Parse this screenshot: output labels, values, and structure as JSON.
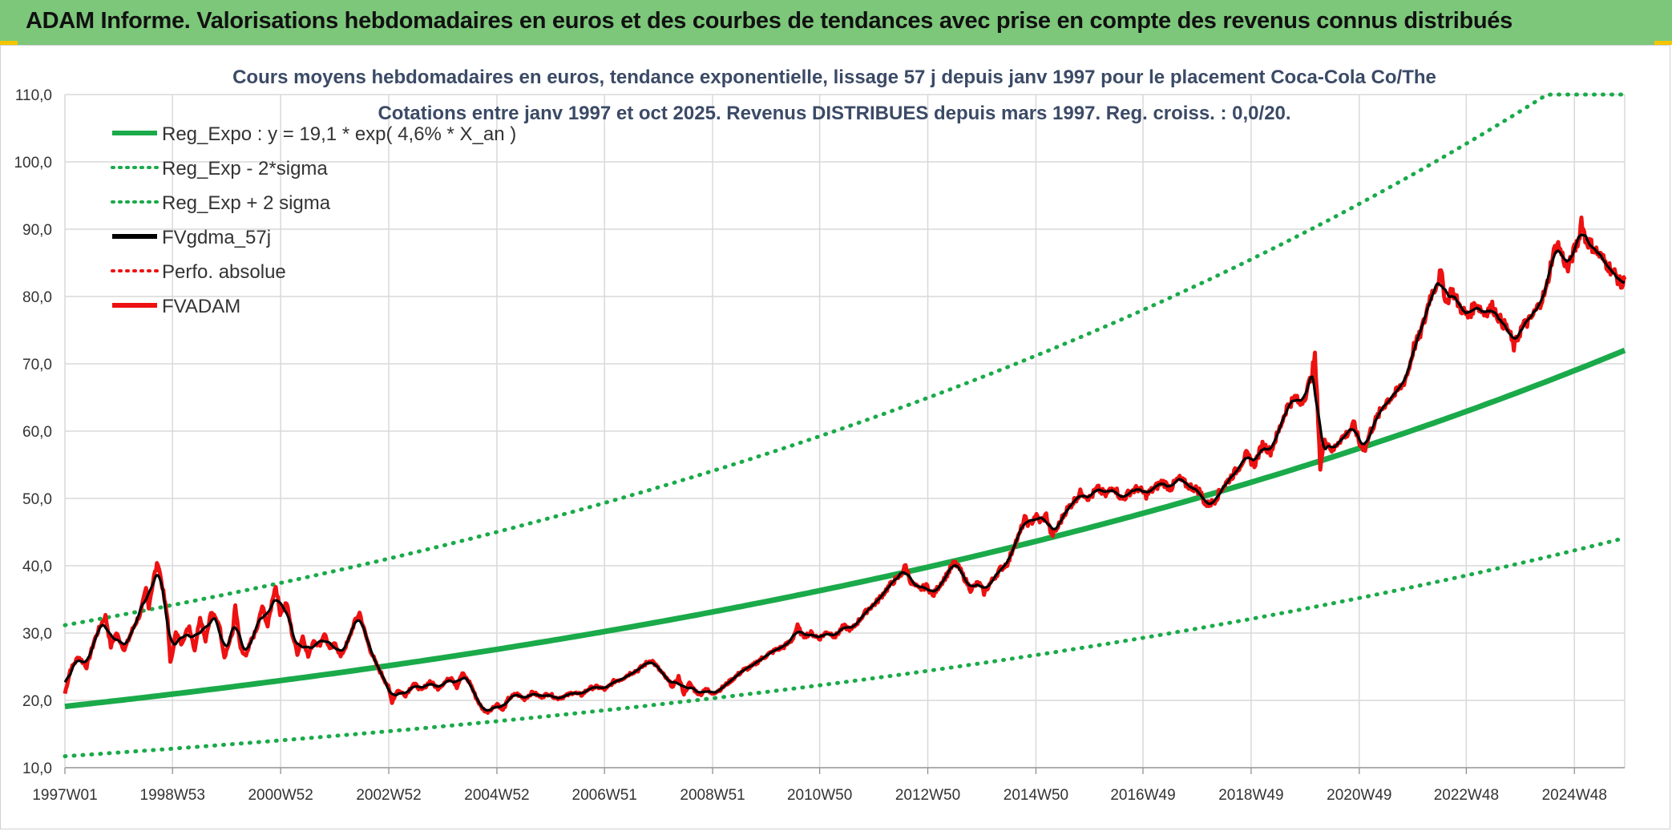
{
  "header": {
    "title": "ADAM Informe. Valorisations hebdomadaires en euros et des courbes de tendances avec prise en compte des revenus connus distribués"
  },
  "colors": {
    "header_bg": "#7cc77a",
    "reg_green": "#1aaa4a",
    "black": "#000000",
    "red": "#ee1111",
    "grid": "#d9d9d9"
  },
  "chart_data": {
    "type": "line",
    "title": "Cours moyens hebdomadaires en euros, tendance exponentielle, lissage 57 j depuis janv 1997 pour le placement Coca-Cola Co/The",
    "subtitle": "Cotations entre janv 1997 et oct 2025. Revenus DISTRIBUES depuis mars 1997. Reg. croiss. : 0,0/20.",
    "xlabel": "",
    "ylabel": "",
    "ylim": [
      10,
      110
    ],
    "y_ticks": [
      "10,0",
      "20,0",
      "30,0",
      "40,0",
      "50,0",
      "60,0",
      "70,0",
      "80,0",
      "90,0",
      "100,0",
      "110,0"
    ],
    "x_range": [
      1997.0,
      2025.85
    ],
    "x_ticks": [
      {
        "label": "1997W01",
        "x": 1997.0
      },
      {
        "label": "1998W53",
        "x": 1998.99
      },
      {
        "label": "2000W52",
        "x": 2000.99
      },
      {
        "label": "2002W52",
        "x": 2002.99
      },
      {
        "label": "2004W52",
        "x": 2004.99
      },
      {
        "label": "2006W51",
        "x": 2006.98
      },
      {
        "label": "2008W51",
        "x": 2008.98
      },
      {
        "label": "2010W50",
        "x": 2010.96
      },
      {
        "label": "2012W50",
        "x": 2012.96
      },
      {
        "label": "2014W50",
        "x": 2014.96
      },
      {
        "label": "2016W49",
        "x": 2016.94
      },
      {
        "label": "2018W49",
        "x": 2018.94
      },
      {
        "label": "2020W49",
        "x": 2020.94
      },
      {
        "label": "2022W48",
        "x": 2022.92
      },
      {
        "label": "2024W48",
        "x": 2024.92
      }
    ],
    "grid": true,
    "legend_position": "top-left",
    "regression": {
      "a": 19.1,
      "rate": 0.046,
      "sigma_factor": 0.632
    },
    "series": [
      {
        "name": "Reg_Expo : y = 19,1 * exp( 4,6% *  X_an )",
        "style": "solid",
        "color": "#1aaa4a",
        "kind": "reg"
      },
      {
        "name": "Reg_Exp - 2*sigma",
        "style": "dotted",
        "color": "#1aaa4a",
        "kind": "reg_low"
      },
      {
        "name": "Reg_Exp + 2 sigma",
        "style": "dotted",
        "color": "#1aaa4a",
        "kind": "reg_high"
      },
      {
        "name": "FVgdma_57j",
        "style": "solid",
        "color": "#000000",
        "kind": "smooth"
      },
      {
        "name": "Perfo. absolue",
        "style": "dotted",
        "color": "#ee1111",
        "kind": "none"
      },
      {
        "name": "FVADAM",
        "style": "solid",
        "color": "#ee1111",
        "kind": "price"
      }
    ],
    "price_points": [
      [
        1997.0,
        21.0
      ],
      [
        1997.1,
        24.5
      ],
      [
        1997.25,
        26.5
      ],
      [
        1997.4,
        25.0
      ],
      [
        1997.55,
        29.0
      ],
      [
        1997.65,
        31.0
      ],
      [
        1997.75,
        32.5
      ],
      [
        1997.85,
        28.0
      ],
      [
        1997.95,
        30.0
      ],
      [
        1998.1,
        27.5
      ],
      [
        1998.25,
        30.5
      ],
      [
        1998.4,
        33.0
      ],
      [
        1998.5,
        36.5
      ],
      [
        1998.55,
        34.0
      ],
      [
        1998.65,
        38.5
      ],
      [
        1998.72,
        40.5
      ],
      [
        1998.8,
        37.0
      ],
      [
        1998.9,
        32.0
      ],
      [
        1998.95,
        25.5
      ],
      [
        1999.05,
        30.0
      ],
      [
        1999.15,
        28.5
      ],
      [
        1999.3,
        31.0
      ],
      [
        1999.4,
        27.5
      ],
      [
        1999.5,
        32.5
      ],
      [
        1999.6,
        29.0
      ],
      [
        1999.7,
        33.0
      ],
      [
        1999.85,
        31.5
      ],
      [
        1999.95,
        26.5
      ],
      [
        2000.1,
        30.0
      ],
      [
        2000.15,
        34.0
      ],
      [
        2000.25,
        27.5
      ],
      [
        2000.35,
        26.5
      ],
      [
        2000.45,
        29.0
      ],
      [
        2000.55,
        30.5
      ],
      [
        2000.65,
        34.0
      ],
      [
        2000.75,
        31.0
      ],
      [
        2000.85,
        35.5
      ],
      [
        2000.9,
        37.0
      ],
      [
        2000.98,
        33.0
      ],
      [
        2001.1,
        34.5
      ],
      [
        2001.2,
        30.0
      ],
      [
        2001.3,
        27.0
      ],
      [
        2001.4,
        29.5
      ],
      [
        2001.5,
        26.5
      ],
      [
        2001.6,
        29.0
      ],
      [
        2001.7,
        28.0
      ],
      [
        2001.8,
        30.0
      ],
      [
        2001.9,
        27.5
      ],
      [
        2002.0,
        28.5
      ],
      [
        2002.1,
        26.5
      ],
      [
        2002.25,
        29.0
      ],
      [
        2002.35,
        31.5
      ],
      [
        2002.45,
        33.0
      ],
      [
        2002.55,
        30.0
      ],
      [
        2002.65,
        27.5
      ],
      [
        2002.75,
        25.5
      ],
      [
        2002.85,
        24.0
      ],
      [
        2002.98,
        22.0
      ],
      [
        2003.05,
        19.8
      ],
      [
        2003.15,
        21.5
      ],
      [
        2003.3,
        20.8
      ],
      [
        2003.45,
        22.5
      ],
      [
        2003.6,
        21.5
      ],
      [
        2003.75,
        22.8
      ],
      [
        2003.9,
        21.8
      ],
      [
        2004.0,
        22.5
      ],
      [
        2004.15,
        23.5
      ],
      [
        2004.25,
        22.0
      ],
      [
        2004.35,
        24.0
      ],
      [
        2004.5,
        22.5
      ],
      [
        2004.6,
        20.5
      ],
      [
        2004.7,
        19.0
      ],
      [
        2004.8,
        18.2
      ],
      [
        2004.9,
        18.8
      ],
      [
        2005.0,
        19.5
      ],
      [
        2005.1,
        18.5
      ],
      [
        2005.2,
        20.2
      ],
      [
        2005.35,
        21.0
      ],
      [
        2005.5,
        20.2
      ],
      [
        2005.65,
        21.2
      ],
      [
        2005.8,
        20.5
      ],
      [
        2005.95,
        21.0
      ],
      [
        2006.1,
        20.3
      ],
      [
        2006.25,
        20.6
      ],
      [
        2006.4,
        21.2
      ],
      [
        2006.55,
        20.8
      ],
      [
        2006.7,
        21.8
      ],
      [
        2006.85,
        22.0
      ],
      [
        2007.0,
        21.6
      ],
      [
        2007.15,
        22.8
      ],
      [
        2007.3,
        23.2
      ],
      [
        2007.45,
        24.0
      ],
      [
        2007.6,
        24.5
      ],
      [
        2007.75,
        25.5
      ],
      [
        2007.85,
        26.0
      ],
      [
        2007.95,
        25.0
      ],
      [
        2008.05,
        24.0
      ],
      [
        2008.15,
        23.0
      ],
      [
        2008.25,
        22.0
      ],
      [
        2008.35,
        23.5
      ],
      [
        2008.45,
        21.0
      ],
      [
        2008.55,
        22.5
      ],
      [
        2008.65,
        21.5
      ],
      [
        2008.75,
        20.8
      ],
      [
        2008.85,
        21.8
      ],
      [
        2008.95,
        21.0
      ],
      [
        2009.1,
        21.5
      ],
      [
        2009.25,
        22.5
      ],
      [
        2009.4,
        23.5
      ],
      [
        2009.55,
        24.5
      ],
      [
        2009.7,
        25.0
      ],
      [
        2009.85,
        26.0
      ],
      [
        2010.0,
        26.8
      ],
      [
        2010.15,
        27.5
      ],
      [
        2010.3,
        28.0
      ],
      [
        2010.45,
        29.0
      ],
      [
        2010.55,
        31.0
      ],
      [
        2010.65,
        29.5
      ],
      [
        2010.8,
        30.0
      ],
      [
        2010.95,
        29.2
      ],
      [
        2011.1,
        30.2
      ],
      [
        2011.25,
        29.5
      ],
      [
        2011.4,
        31.0
      ],
      [
        2011.55,
        30.5
      ],
      [
        2011.7,
        32.0
      ],
      [
        2011.85,
        33.5
      ],
      [
        2012.0,
        34.5
      ],
      [
        2012.15,
        36.0
      ],
      [
        2012.3,
        37.5
      ],
      [
        2012.45,
        38.5
      ],
      [
        2012.55,
        40.0
      ],
      [
        2012.65,
        37.5
      ],
      [
        2012.8,
        36.5
      ],
      [
        2012.95,
        37.0
      ],
      [
        2013.05,
        35.5
      ],
      [
        2013.15,
        36.8
      ],
      [
        2013.3,
        38.5
      ],
      [
        2013.45,
        40.5
      ],
      [
        2013.55,
        39.5
      ],
      [
        2013.65,
        38.0
      ],
      [
        2013.75,
        36.5
      ],
      [
        2013.9,
        37.5
      ],
      [
        2014.0,
        36.0
      ],
      [
        2014.15,
        37.8
      ],
      [
        2014.3,
        39.5
      ],
      [
        2014.45,
        40.5
      ],
      [
        2014.55,
        43.0
      ],
      [
        2014.65,
        44.5
      ],
      [
        2014.75,
        47.0
      ],
      [
        2014.85,
        46.0
      ],
      [
        2014.95,
        47.5
      ],
      [
        2015.05,
        46.5
      ],
      [
        2015.15,
        47.5
      ],
      [
        2015.25,
        44.5
      ],
      [
        2015.35,
        45.5
      ],
      [
        2015.5,
        48.0
      ],
      [
        2015.65,
        49.5
      ],
      [
        2015.8,
        51.0
      ],
      [
        2015.95,
        50.0
      ],
      [
        2016.1,
        51.5
      ],
      [
        2016.25,
        50.5
      ],
      [
        2016.4,
        51.8
      ],
      [
        2016.55,
        49.8
      ],
      [
        2016.7,
        51.0
      ],
      [
        2016.85,
        51.5
      ],
      [
        2017.0,
        50.5
      ],
      [
        2017.15,
        51.5
      ],
      [
        2017.3,
        52.5
      ],
      [
        2017.45,
        51.5
      ],
      [
        2017.6,
        53.0
      ],
      [
        2017.75,
        52.0
      ],
      [
        2017.9,
        51.5
      ],
      [
        2018.0,
        51.0
      ],
      [
        2018.1,
        49.0
      ],
      [
        2018.25,
        49.5
      ],
      [
        2018.4,
        51.5
      ],
      [
        2018.55,
        53.0
      ],
      [
        2018.7,
        54.5
      ],
      [
        2018.85,
        56.5
      ],
      [
        2019.0,
        55.0
      ],
      [
        2019.15,
        58.0
      ],
      [
        2019.3,
        57.0
      ],
      [
        2019.45,
        60.0
      ],
      [
        2019.6,
        63.5
      ],
      [
        2019.75,
        65.0
      ],
      [
        2019.85,
        64.0
      ],
      [
        2019.95,
        65.5
      ],
      [
        2020.05,
        68.0
      ],
      [
        2020.12,
        71.0
      ],
      [
        2020.18,
        62.0
      ],
      [
        2020.22,
        54.5
      ],
      [
        2020.3,
        59.0
      ],
      [
        2020.45,
        57.0
      ],
      [
        2020.55,
        58.5
      ],
      [
        2020.7,
        59.5
      ],
      [
        2020.85,
        61.0
      ],
      [
        2020.95,
        58.0
      ],
      [
        2021.05,
        57.5
      ],
      [
        2021.15,
        60.0
      ],
      [
        2021.3,
        62.5
      ],
      [
        2021.45,
        64.5
      ],
      [
        2021.6,
        65.5
      ],
      [
        2021.75,
        67.0
      ],
      [
        2021.85,
        69.0
      ],
      [
        2021.95,
        72.5
      ],
      [
        2022.05,
        74.0
      ],
      [
        2022.15,
        76.5
      ],
      [
        2022.25,
        80.0
      ],
      [
        2022.35,
        81.5
      ],
      [
        2022.45,
        83.5
      ],
      [
        2022.55,
        79.0
      ],
      [
        2022.65,
        81.0
      ],
      [
        2022.8,
        78.5
      ],
      [
        2022.95,
        77.0
      ],
      [
        2023.1,
        79.0
      ],
      [
        2023.25,
        77.5
      ],
      [
        2023.4,
        78.5
      ],
      [
        2023.55,
        76.5
      ],
      [
        2023.7,
        75.0
      ],
      [
        2023.8,
        72.5
      ],
      [
        2023.95,
        75.5
      ],
      [
        2024.1,
        76.5
      ],
      [
        2024.25,
        78.5
      ],
      [
        2024.4,
        81.0
      ],
      [
        2024.5,
        85.5
      ],
      [
        2024.6,
        88.0
      ],
      [
        2024.7,
        86.0
      ],
      [
        2024.8,
        84.0
      ],
      [
        2024.9,
        86.5
      ],
      [
        2025.0,
        88.5
      ],
      [
        2025.05,
        91.5
      ],
      [
        2025.12,
        88.5
      ],
      [
        2025.25,
        87.5
      ],
      [
        2025.4,
        86.0
      ],
      [
        2025.55,
        84.5
      ],
      [
        2025.7,
        83.0
      ],
      [
        2025.8,
        81.5
      ],
      [
        2025.85,
        82.5
      ]
    ]
  }
}
